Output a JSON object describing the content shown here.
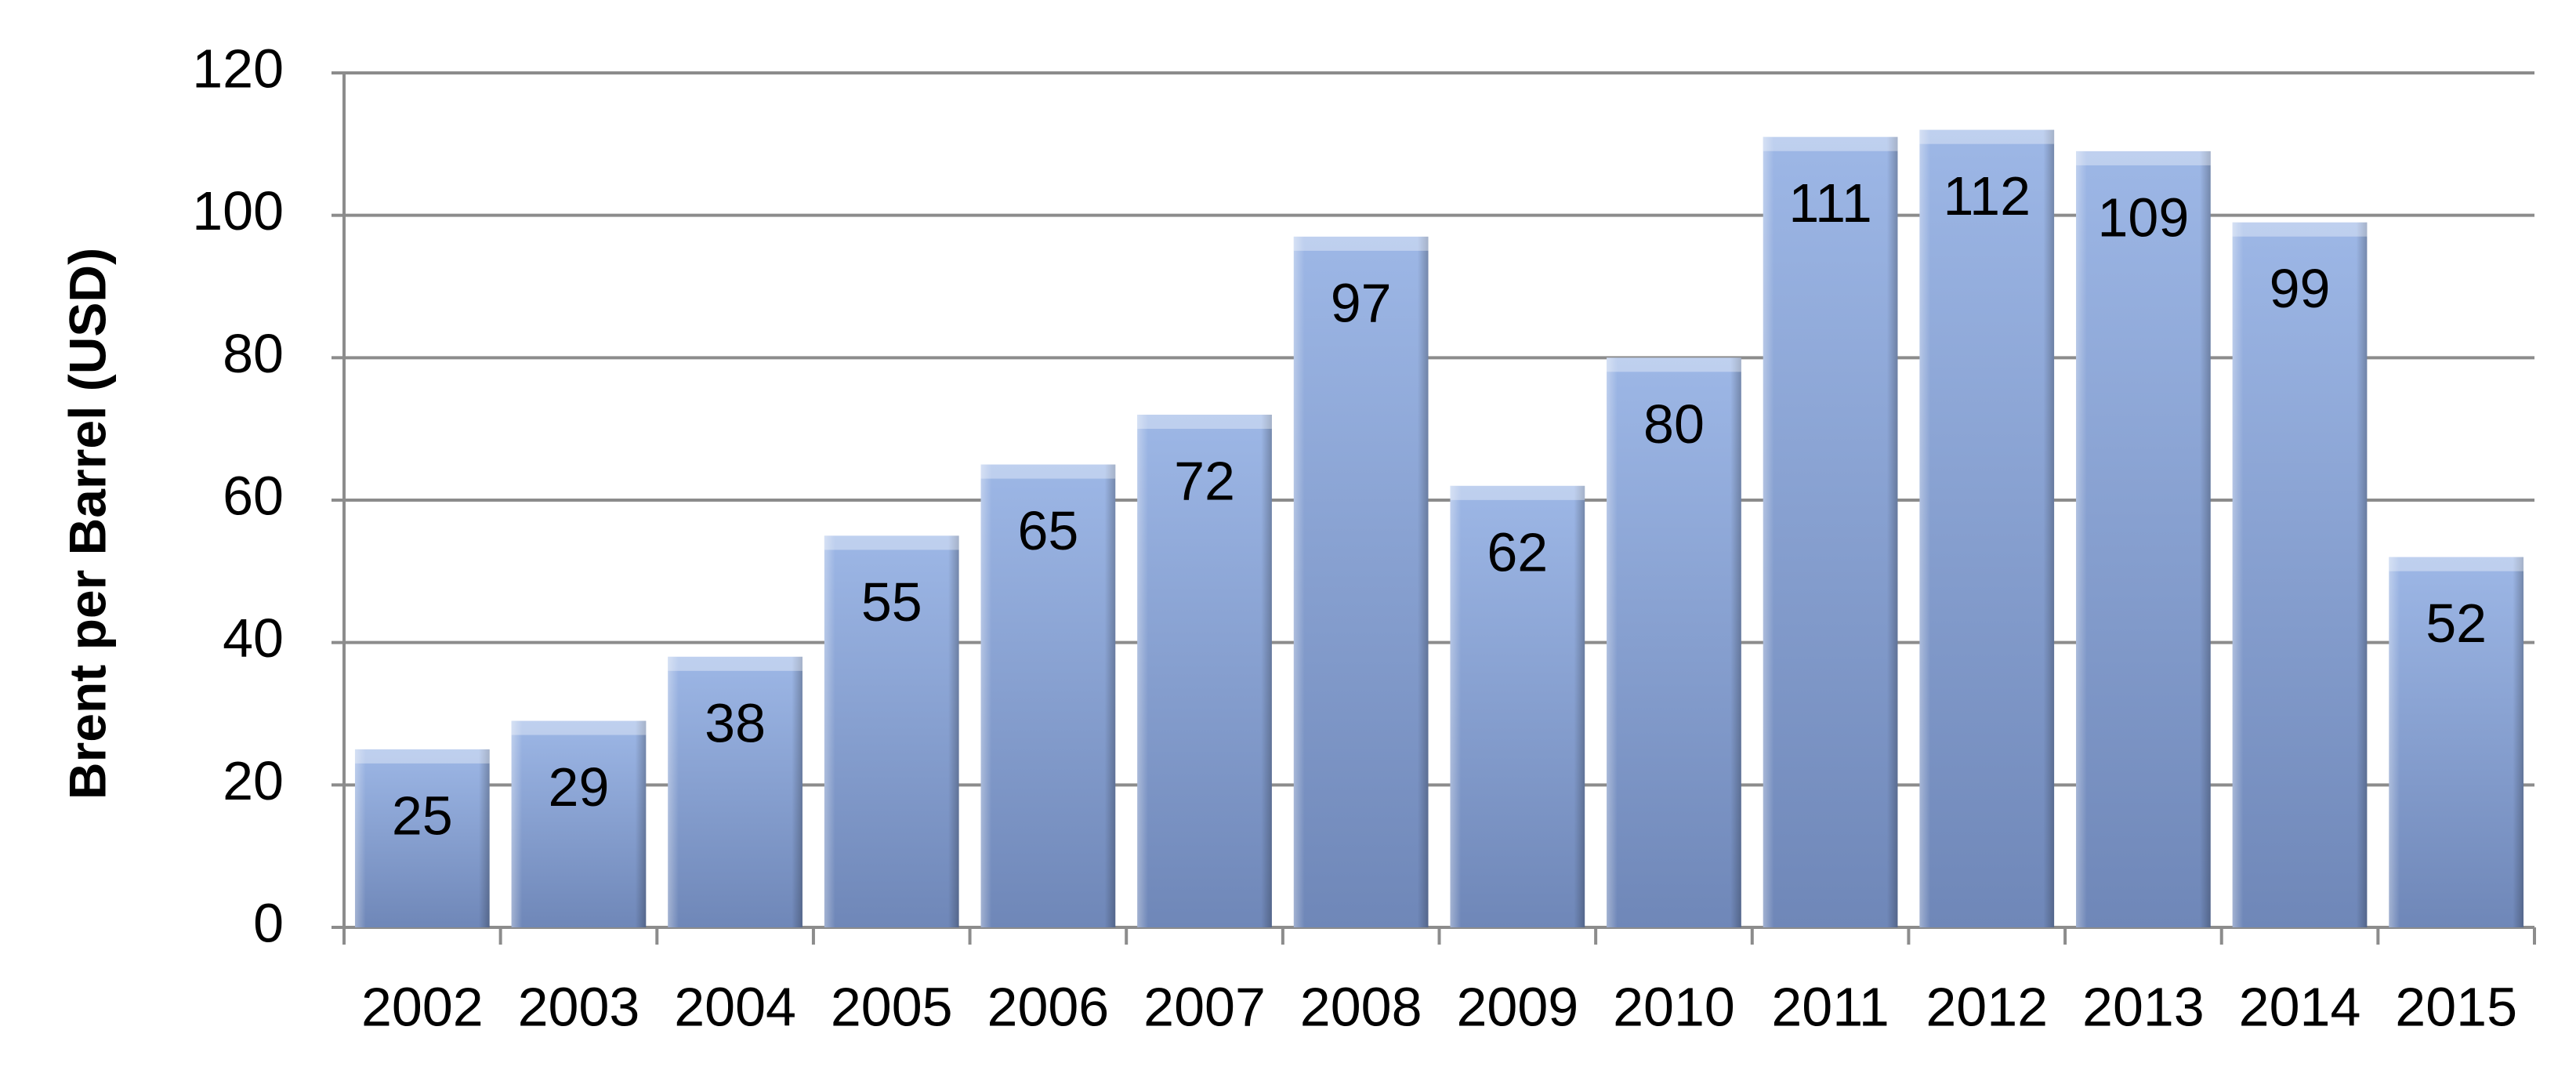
{
  "chart_data": {
    "type": "bar",
    "y_label": "Brent per Barrel (USD)",
    "categories": [
      "2002",
      "2003",
      "2004",
      "2005",
      "2006",
      "2007",
      "2008",
      "2009",
      "2010",
      "2011",
      "2012",
      "2013",
      "2014",
      "2015"
    ],
    "values": [
      25,
      29,
      38,
      55,
      65,
      72,
      97,
      62,
      80,
      111,
      112,
      109,
      99,
      52
    ],
    "color": "#8ea9d8",
    "ylim": [
      0,
      120
    ],
    "yticks": [
      0,
      20,
      40,
      60,
      80,
      100,
      120
    ],
    "grid": true
  }
}
